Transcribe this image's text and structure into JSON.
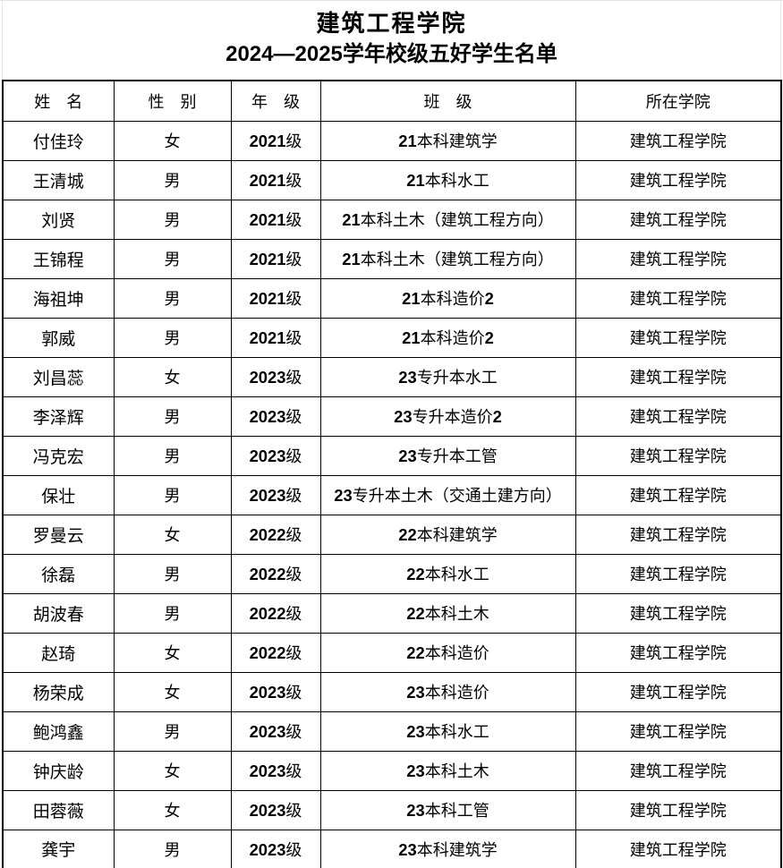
{
  "doc": {
    "title_line1": "建筑工程学院",
    "title_line2": "2024—2025学年校级五好学生名单"
  },
  "table": {
    "columns": [
      "姓　名",
      "性　别",
      "年　级",
      "班　级",
      "所在学院"
    ],
    "rows": [
      {
        "name": "付佳玲",
        "gender": "女",
        "grade": "2021级",
        "class": "21本科建筑学",
        "college": "建筑工程学院"
      },
      {
        "name": "王清城",
        "gender": "男",
        "grade": "2021级",
        "class": "21本科水工",
        "college": "建筑工程学院"
      },
      {
        "name": "刘贤",
        "gender": "男",
        "grade": "2021级",
        "class": "21本科土木（建筑工程方向）",
        "college": "建筑工程学院"
      },
      {
        "name": "王锦程",
        "gender": "男",
        "grade": "2021级",
        "class": "21本科土木（建筑工程方向）",
        "college": "建筑工程学院"
      },
      {
        "name": "海祖坤",
        "gender": "男",
        "grade": "2021级",
        "class": "21本科造价2",
        "college": "建筑工程学院"
      },
      {
        "name": "郭威",
        "gender": "男",
        "grade": "2021级",
        "class": "21本科造价2",
        "college": "建筑工程学院"
      },
      {
        "name": "刘昌蕊",
        "gender": "女",
        "grade": "2023级",
        "class": "23专升本水工",
        "college": "建筑工程学院"
      },
      {
        "name": "李泽辉",
        "gender": "男",
        "grade": "2023级",
        "class": "23专升本造价2",
        "college": "建筑工程学院"
      },
      {
        "name": "冯克宏",
        "gender": "男",
        "grade": "2023级",
        "class": "23专升本工管",
        "college": "建筑工程学院"
      },
      {
        "name": "保壮",
        "gender": "男",
        "grade": "2023级",
        "class": "23专升本土木（交通土建方向）",
        "college": "建筑工程学院"
      },
      {
        "name": "罗曼云",
        "gender": "女",
        "grade": "2022级",
        "class": "22本科建筑学",
        "college": "建筑工程学院"
      },
      {
        "name": "徐磊",
        "gender": "男",
        "grade": "2022级",
        "class": "22本科水工",
        "college": "建筑工程学院"
      },
      {
        "name": "胡波春",
        "gender": "男",
        "grade": "2022级",
        "class": "22本科土木",
        "college": "建筑工程学院"
      },
      {
        "name": "赵琦",
        "gender": "女",
        "grade": "2022级",
        "class": "22本科造价",
        "college": "建筑工程学院"
      },
      {
        "name": "杨荣成",
        "gender": "女",
        "grade": "2023级",
        "class": "23本科造价",
        "college": "建筑工程学院"
      },
      {
        "name": "鲍鸿鑫",
        "gender": "男",
        "grade": "2023级",
        "class": "23本科水工",
        "college": "建筑工程学院"
      },
      {
        "name": "钟庆龄",
        "gender": "女",
        "grade": "2023级",
        "class": "23本科土木",
        "college": "建筑工程学院"
      },
      {
        "name": "田蓉薇",
        "gender": "女",
        "grade": "2023级",
        "class": "23本科工管",
        "college": "建筑工程学院"
      },
      {
        "name": "龚宇",
        "gender": "男",
        "grade": "2023级",
        "class": "23本科建筑学",
        "college": "建筑工程学院"
      }
    ]
  }
}
